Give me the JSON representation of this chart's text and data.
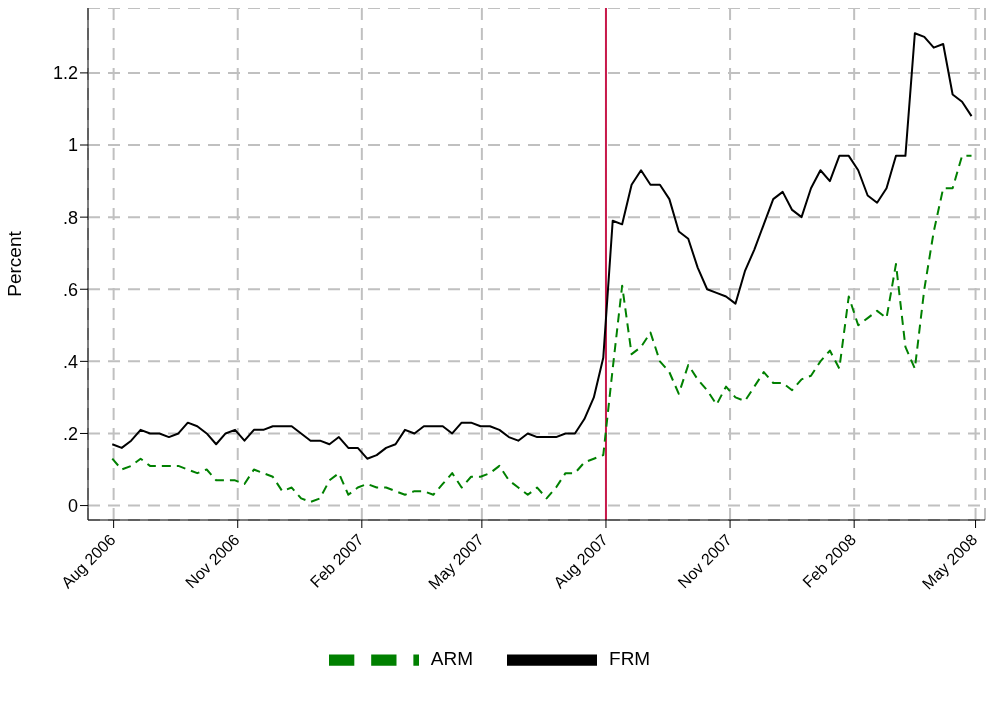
{
  "chart_data": {
    "type": "line",
    "ylabel": "Percent",
    "x": [
      "2006-07-31",
      "2006-08-07",
      "2006-08-14",
      "2006-08-21",
      "2006-08-28",
      "2006-09-04",
      "2006-09-11",
      "2006-09-18",
      "2006-09-25",
      "2006-10-02",
      "2006-10-09",
      "2006-10-16",
      "2006-10-23",
      "2006-10-30",
      "2006-11-06",
      "2006-11-13",
      "2006-11-20",
      "2006-11-27",
      "2006-12-04",
      "2006-12-11",
      "2006-12-18",
      "2006-12-25",
      "2007-01-01",
      "2007-01-08",
      "2007-01-15",
      "2007-01-22",
      "2007-01-29",
      "2007-02-05",
      "2007-02-12",
      "2007-02-19",
      "2007-02-26",
      "2007-03-05",
      "2007-03-12",
      "2007-03-19",
      "2007-03-26",
      "2007-04-02",
      "2007-04-09",
      "2007-04-16",
      "2007-04-23",
      "2007-04-30",
      "2007-05-07",
      "2007-05-14",
      "2007-05-21",
      "2007-05-28",
      "2007-06-04",
      "2007-06-11",
      "2007-06-18",
      "2007-06-25",
      "2007-07-02",
      "2007-07-09",
      "2007-07-16",
      "2007-07-23",
      "2007-07-30",
      "2007-08-06",
      "2007-08-13",
      "2007-08-20",
      "2007-08-27",
      "2007-09-03",
      "2007-09-10",
      "2007-09-17",
      "2007-09-24",
      "2007-10-01",
      "2007-10-08",
      "2007-10-15",
      "2007-10-22",
      "2007-10-29",
      "2007-11-05",
      "2007-11-12",
      "2007-11-19",
      "2007-11-26",
      "2007-12-03",
      "2007-12-10",
      "2007-12-17",
      "2007-12-24",
      "2007-12-31",
      "2008-01-07",
      "2008-01-14",
      "2008-01-21",
      "2008-01-28",
      "2008-02-04",
      "2008-02-11",
      "2008-02-18",
      "2008-02-25",
      "2008-03-03",
      "2008-03-10",
      "2008-03-17",
      "2008-03-24",
      "2008-03-31",
      "2008-04-07",
      "2008-04-14",
      "2008-04-21",
      "2008-04-28"
    ],
    "series": [
      {
        "name": "FRM",
        "color": "#000000",
        "line_style": "solid",
        "values": [
          0.17,
          0.16,
          0.18,
          0.21,
          0.2,
          0.2,
          0.19,
          0.2,
          0.23,
          0.22,
          0.2,
          0.17,
          0.2,
          0.21,
          0.18,
          0.21,
          0.21,
          0.22,
          0.22,
          0.22,
          0.2,
          0.18,
          0.18,
          0.17,
          0.19,
          0.16,
          0.16,
          0.13,
          0.14,
          0.16,
          0.17,
          0.21,
          0.2,
          0.22,
          0.22,
          0.22,
          0.2,
          0.23,
          0.23,
          0.22,
          0.22,
          0.21,
          0.19,
          0.18,
          0.2,
          0.19,
          0.19,
          0.19,
          0.2,
          0.2,
          0.24,
          0.3,
          0.41,
          0.79,
          0.78,
          0.89,
          0.93,
          0.89,
          0.89,
          0.85,
          0.76,
          0.74,
          0.66,
          0.6,
          0.59,
          0.58,
          0.56,
          0.65,
          0.71,
          0.78,
          0.85,
          0.87,
          0.82,
          0.8,
          0.88,
          0.93,
          0.9,
          0.97,
          0.97,
          0.93,
          0.86,
          0.84,
          0.88,
          0.97,
          0.97,
          1.31,
          1.3,
          1.27,
          1.28,
          1.14,
          1.12,
          1.08
        ]
      },
      {
        "name": "ARM",
        "color": "#008000",
        "line_style": "dashed",
        "values": [
          0.13,
          0.1,
          0.11,
          0.13,
          0.11,
          0.11,
          0.11,
          0.11,
          0.1,
          0.09,
          0.1,
          0.07,
          0.07,
          0.07,
          0.06,
          0.1,
          0.09,
          0.08,
          0.04,
          0.05,
          0.02,
          0.01,
          0.02,
          0.07,
          0.09,
          0.03,
          0.05,
          0.06,
          0.05,
          0.05,
          0.04,
          0.03,
          0.04,
          0.04,
          0.03,
          0.06,
          0.09,
          0.05,
          0.08,
          0.08,
          0.09,
          0.11,
          0.07,
          0.05,
          0.03,
          0.05,
          0.02,
          0.05,
          0.09,
          0.09,
          0.12,
          0.13,
          0.14,
          0.38,
          0.61,
          0.42,
          0.44,
          0.48,
          0.4,
          0.37,
          0.31,
          0.39,
          0.35,
          0.32,
          0.28,
          0.33,
          0.3,
          0.29,
          0.33,
          0.37,
          0.34,
          0.34,
          0.32,
          0.35,
          0.36,
          0.4,
          0.43,
          0.38,
          0.58,
          0.5,
          0.52,
          0.54,
          0.52,
          0.67,
          0.44,
          0.38,
          0.6,
          0.76,
          0.88,
          0.88,
          0.97,
          0.97
        ]
      }
    ],
    "xlim": [
      "2006-07-13",
      "2008-05-08"
    ],
    "xticks": [
      {
        "value": "2006-08-01",
        "label": "Aug 2006"
      },
      {
        "value": "2006-11-01",
        "label": "Nov 2006"
      },
      {
        "value": "2007-02-01",
        "label": "Feb 2007"
      },
      {
        "value": "2007-05-01",
        "label": "May 2007"
      },
      {
        "value": "2007-08-01",
        "label": "Aug 2007"
      },
      {
        "value": "2007-11-01",
        "label": "Nov 2007"
      },
      {
        "value": "2008-02-01",
        "label": "Feb 2008"
      },
      {
        "value": "2008-05-01",
        "label": "May 2008"
      }
    ],
    "ylim": [
      -0.04,
      1.38
    ],
    "yticks": [
      {
        "value": 0,
        "label": "0"
      },
      {
        "value": 0.2,
        "label": ".2"
      },
      {
        "value": 0.4,
        "label": ".4"
      },
      {
        "value": 0.6,
        "label": ".6"
      },
      {
        "value": 0.8,
        "label": ".8"
      },
      {
        "value": 1,
        "label": "1"
      },
      {
        "value": 1.2,
        "label": "1.2"
      }
    ],
    "ref_lines": [
      {
        "axis": "x",
        "value": "2007-08-01",
        "color": "#c8194b",
        "line_style": "solid"
      }
    ],
    "grid": true,
    "legend": "bottom",
    "marker": "none"
  }
}
